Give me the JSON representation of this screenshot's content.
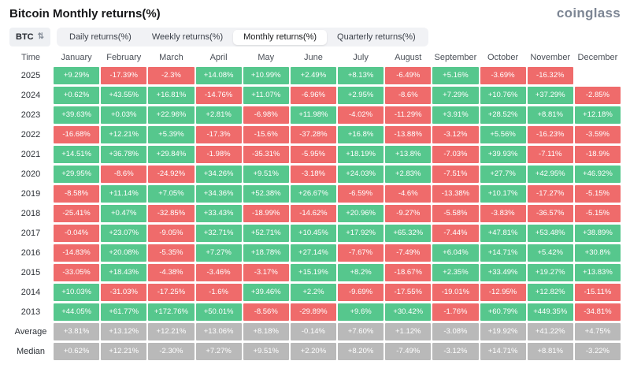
{
  "header": {
    "title": "Bitcoin Monthly returns(%)",
    "logo_text": "coinglass"
  },
  "controls": {
    "symbol": "BTC",
    "icons": {
      "sort": "⇅"
    },
    "tabs": [
      {
        "label": "Daily returns(%)",
        "active": false
      },
      {
        "label": "Weekly returns(%)",
        "active": false
      },
      {
        "label": "Monthly returns(%)",
        "active": true
      },
      {
        "label": "Quarterly returns(%)",
        "active": false
      }
    ]
  },
  "colors": {
    "positive": "#56c78d",
    "negative": "#ef6b6b",
    "neutral": "#b9b9b9"
  },
  "chart_data": {
    "type": "heatmap",
    "title": "Bitcoin Monthly returns(%)",
    "columns": [
      "Time",
      "January",
      "February",
      "March",
      "April",
      "May",
      "June",
      "July",
      "August",
      "September",
      "October",
      "November",
      "December"
    ],
    "rows": [
      {
        "label": "2025",
        "neutral": false,
        "values": [
          "+9.29%",
          "-17.39%",
          "-2.3%",
          "+14.08%",
          "+10.99%",
          "+2.49%",
          "+8.13%",
          "-6.49%",
          "+5.16%",
          "-3.69%",
          "-16.32%",
          null
        ]
      },
      {
        "label": "2024",
        "neutral": false,
        "values": [
          "+0.62%",
          "+43.55%",
          "+16.81%",
          "-14.76%",
          "+11.07%",
          "-6.96%",
          "+2.95%",
          "-8.6%",
          "+7.29%",
          "+10.76%",
          "+37.29%",
          "-2.85%"
        ]
      },
      {
        "label": "2023",
        "neutral": false,
        "values": [
          "+39.63%",
          "+0.03%",
          "+22.96%",
          "+2.81%",
          "-6.98%",
          "+11.98%",
          "-4.02%",
          "-11.29%",
          "+3.91%",
          "+28.52%",
          "+8.81%",
          "+12.18%"
        ]
      },
      {
        "label": "2022",
        "neutral": false,
        "values": [
          "-16.68%",
          "+12.21%",
          "+5.39%",
          "-17.3%",
          "-15.6%",
          "-37.28%",
          "+16.8%",
          "-13.88%",
          "-3.12%",
          "+5.56%",
          "-16.23%",
          "-3.59%"
        ]
      },
      {
        "label": "2021",
        "neutral": false,
        "values": [
          "+14.51%",
          "+36.78%",
          "+29.84%",
          "-1.98%",
          "-35.31%",
          "-5.95%",
          "+18.19%",
          "+13.8%",
          "-7.03%",
          "+39.93%",
          "-7.11%",
          "-18.9%"
        ]
      },
      {
        "label": "2020",
        "neutral": false,
        "values": [
          "+29.95%",
          "-8.6%",
          "-24.92%",
          "+34.26%",
          "+9.51%",
          "-3.18%",
          "+24.03%",
          "+2.83%",
          "-7.51%",
          "+27.7%",
          "+42.95%",
          "+46.92%"
        ]
      },
      {
        "label": "2019",
        "neutral": false,
        "values": [
          "-8.58%",
          "+11.14%",
          "+7.05%",
          "+34.36%",
          "+52.38%",
          "+26.67%",
          "-6.59%",
          "-4.6%",
          "-13.38%",
          "+10.17%",
          "-17.27%",
          "-5.15%"
        ]
      },
      {
        "label": "2018",
        "neutral": false,
        "values": [
          "-25.41%",
          "+0.47%",
          "-32.85%",
          "+33.43%",
          "-18.99%",
          "-14.62%",
          "+20.96%",
          "-9.27%",
          "-5.58%",
          "-3.83%",
          "-36.57%",
          "-5.15%"
        ]
      },
      {
        "label": "2017",
        "neutral": false,
        "values": [
          "-0.04%",
          "+23.07%",
          "-9.05%",
          "+32.71%",
          "+52.71%",
          "+10.45%",
          "+17.92%",
          "+65.32%",
          "-7.44%",
          "+47.81%",
          "+53.48%",
          "+38.89%"
        ]
      },
      {
        "label": "2016",
        "neutral": false,
        "values": [
          "-14.83%",
          "+20.08%",
          "-5.35%",
          "+7.27%",
          "+18.78%",
          "+27.14%",
          "-7.67%",
          "-7.49%",
          "+6.04%",
          "+14.71%",
          "+5.42%",
          "+30.8%"
        ]
      },
      {
        "label": "2015",
        "neutral": false,
        "values": [
          "-33.05%",
          "+18.43%",
          "-4.38%",
          "-3.46%",
          "-3.17%",
          "+15.19%",
          "+8.2%",
          "-18.67%",
          "+2.35%",
          "+33.49%",
          "+19.27%",
          "+13.83%"
        ]
      },
      {
        "label": "2014",
        "neutral": false,
        "values": [
          "+10.03%",
          "-31.03%",
          "-17.25%",
          "-1.6%",
          "+39.46%",
          "+2.2%",
          "-9.69%",
          "-17.55%",
          "-19.01%",
          "-12.95%",
          "+12.82%",
          "-15.11%"
        ]
      },
      {
        "label": "2013",
        "neutral": false,
        "values": [
          "+44.05%",
          "+61.77%",
          "+172.76%",
          "+50.01%",
          "-8.56%",
          "-29.89%",
          "+9.6%",
          "+30.42%",
          "-1.76%",
          "+60.79%",
          "+449.35%",
          "-34.81%"
        ]
      },
      {
        "label": "Average",
        "neutral": true,
        "values": [
          "+3.81%",
          "+13.12%",
          "+12.21%",
          "+13.06%",
          "+8.18%",
          "-0.14%",
          "+7.60%",
          "+1.12%",
          "-3.08%",
          "+19.92%",
          "+41.22%",
          "+4.75%"
        ]
      },
      {
        "label": "Median",
        "neutral": true,
        "values": [
          "+0.62%",
          "+12.21%",
          "-2.30%",
          "+7.27%",
          "+9.51%",
          "+2.20%",
          "+8.20%",
          "-7.49%",
          "-3.12%",
          "+14.71%",
          "+8.81%",
          "-3.22%"
        ]
      }
    ]
  }
}
